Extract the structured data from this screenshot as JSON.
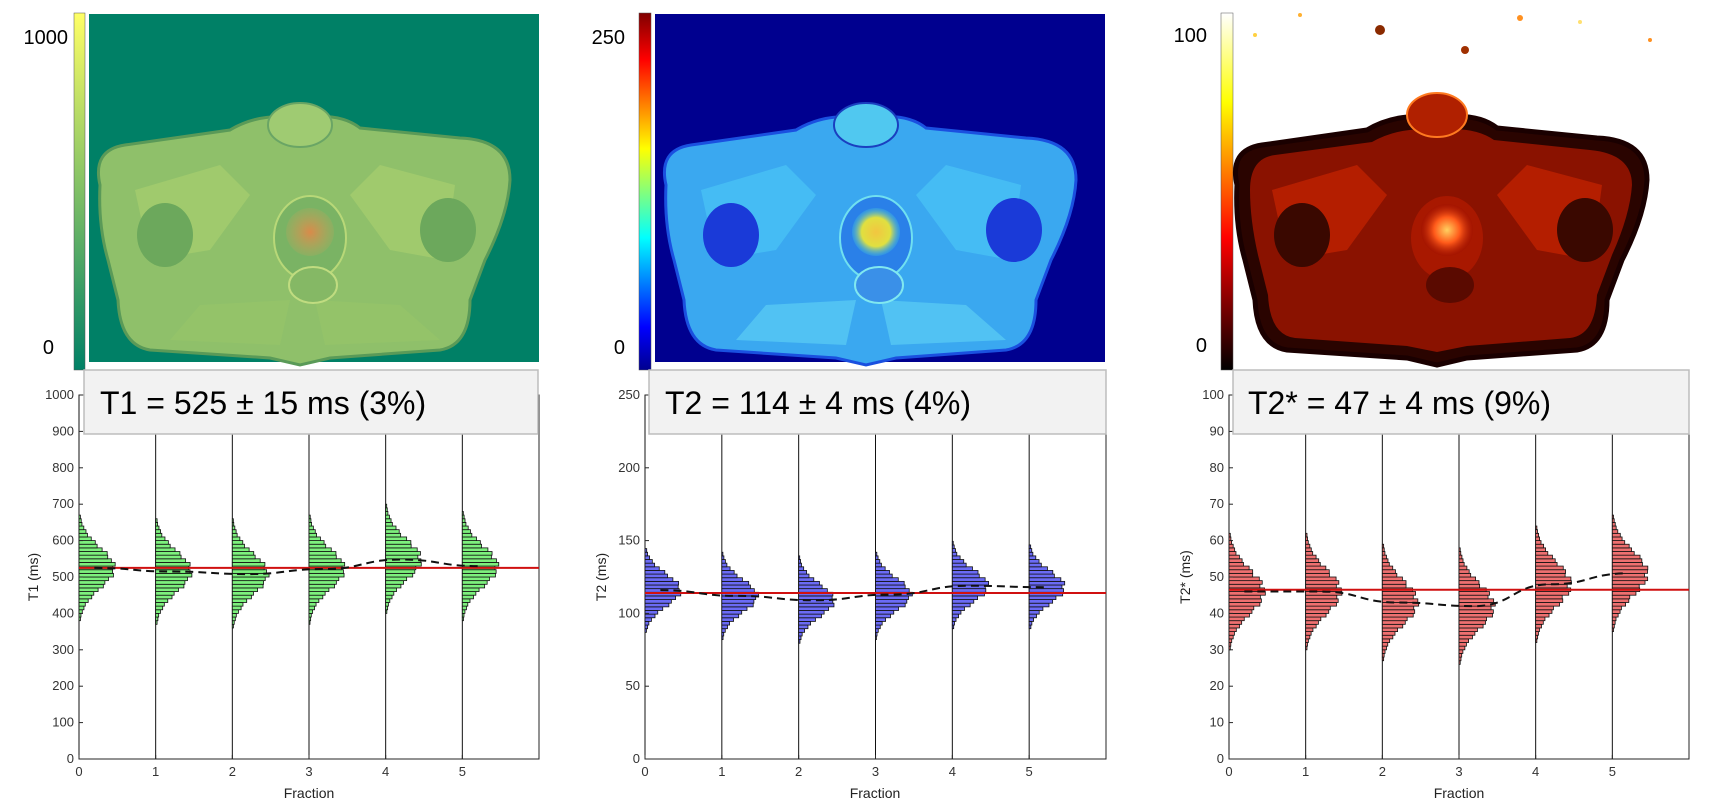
{
  "chart_data": [
    {
      "type": "histogram",
      "map": "T1",
      "colormap": "summer",
      "colorbar": {
        "max_label": "1000",
        "min_label": "0"
      },
      "summary": "T1 = 525 ± 15 ms (3%)",
      "xlabel": "Fraction",
      "ylabel": "T1 (ms)",
      "xlim": [
        0,
        6
      ],
      "ylim": [
        0,
        1000
      ],
      "xticks": [
        "0",
        "1",
        "2",
        "3",
        "4",
        "5"
      ],
      "yticks": [
        "0",
        "100",
        "200",
        "300",
        "400",
        "500",
        "600",
        "700",
        "800",
        "900",
        "1000"
      ],
      "bar_color": "#7df07d",
      "hist_bins": {
        "start": 340,
        "step": 10,
        "count": 48
      },
      "fraction_means": [
        525,
        515,
        508,
        522,
        548,
        530
      ],
      "fraction_sd": 55,
      "max_width_fraction": 0.48,
      "mean_line": 525
    },
    {
      "type": "histogram",
      "map": "T2",
      "colormap": "jet",
      "colorbar": {
        "max_label": "250",
        "min_label": "0"
      },
      "summary": "T2 = 114 ± 4 ms (4%)",
      "xlabel": "Fraction",
      "ylabel": "T2 (ms)",
      "xlim": [
        0,
        6
      ],
      "ylim": [
        0,
        250
      ],
      "xticks": [
        "0",
        "1",
        "2",
        "3",
        "4",
        "5"
      ],
      "yticks": [
        "0",
        "50",
        "100",
        "150",
        "200",
        "250"
      ],
      "bar_color": "#6b6bf5",
      "hist_bins": {
        "start": 72,
        "step": 2.5,
        "count": 36
      },
      "fraction_means": [
        116,
        112,
        109,
        113,
        119,
        118
      ],
      "fraction_sd": 11,
      "max_width_fraction": 0.48,
      "mean_line": 114
    },
    {
      "type": "histogram",
      "map": "T2*",
      "colormap": "hot",
      "colorbar": {
        "max_label": "100",
        "min_label": "0"
      },
      "summary": "T2* = 47 ±  4 ms (9%)",
      "xlabel": "Fraction",
      "ylabel": "T2* (ms)",
      "xlim": [
        0,
        6
      ],
      "ylim": [
        0,
        100
      ],
      "xticks": [
        "0",
        "1",
        "2",
        "3",
        "4",
        "5"
      ],
      "yticks": [
        "0",
        "10",
        "20",
        "30",
        "40",
        "50",
        "60",
        "70",
        "80",
        "90",
        "100"
      ],
      "bar_color": "#ee7070",
      "hist_bins": {
        "start": 17,
        "step": 1,
        "count": 52
      },
      "fraction_means": [
        46,
        46,
        43,
        42,
        48,
        51
      ],
      "fraction_sd": 6,
      "max_width_fraction": 0.48,
      "mean_line": 46.5
    }
  ]
}
